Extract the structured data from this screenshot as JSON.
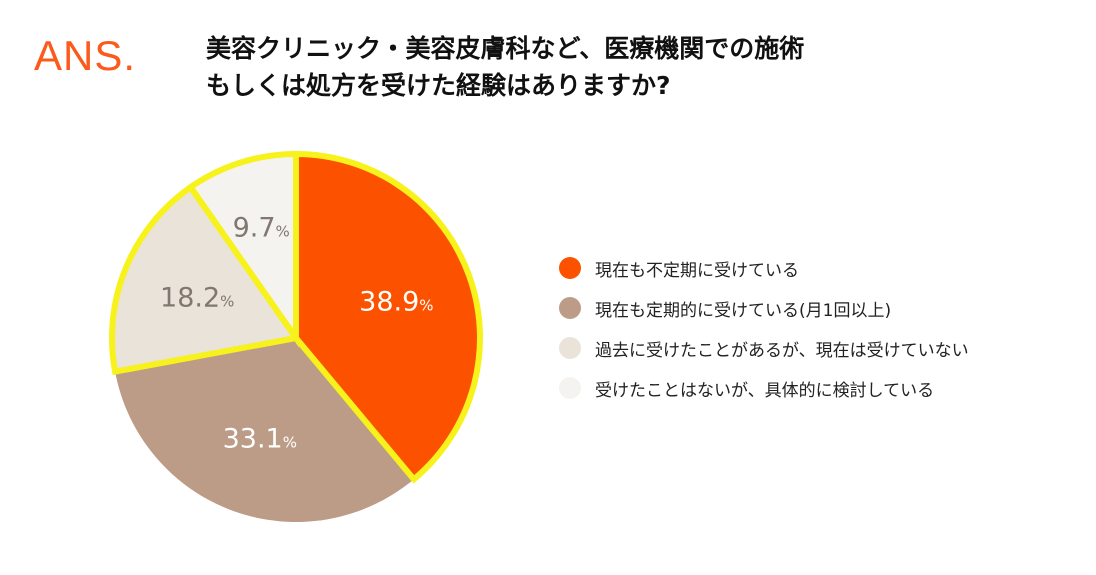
{
  "brand": {
    "logo": "ANS.",
    "color": "#fc5a1c"
  },
  "title_lines": [
    "美容クリニック・美容皮膚科など、医療機関での施術",
    "もしくは処方を受けた経験はありますか?"
  ],
  "chart_data": {
    "type": "pie",
    "title": "美容クリニック・美容皮膚科など、医療機関での施術もしくは処方を受けた経験はありますか?",
    "start": "12 o'clock",
    "direction": "clockwise",
    "highlight": {
      "color": "#f7f21c",
      "slices": [
        "現在も不定期に受けている",
        "過去に受けたことがあるが、現在は受けていない",
        "受けたことはないが、具体的に検討している"
      ]
    },
    "slices": [
      {
        "label": "現在も不定期に受けている",
        "value": 38.9,
        "display": "38.9",
        "unit": "%",
        "color": "#fc5200",
        "text_color": "#ffffff"
      },
      {
        "label": "現在も定期的に受けている(月1回以上)",
        "value": 33.1,
        "display": "33.1",
        "unit": "%",
        "color": "#bc9c87",
        "text_color": "#ffffff"
      },
      {
        "label": "過去に受けたことがあるが、現在は受けていない",
        "value": 18.2,
        "display": "18.2",
        "unit": "%",
        "color": "#e9e3da",
        "text_color": "#807870"
      },
      {
        "label": "受けたことはないが、具体的に検討している",
        "value": 9.7,
        "display": "9.7",
        "unit": "%",
        "color": "#f4f3ef",
        "text_color": "#807870"
      }
    ],
    "legend_position": "right"
  }
}
